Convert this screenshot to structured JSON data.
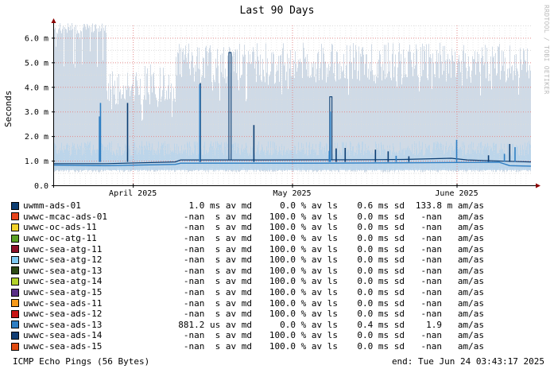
{
  "chart_data": {
    "type": "line",
    "title": "Last 90 Days",
    "ylabel": "Seconds",
    "watermark": "RRDTOOL / TOBI OETIKER",
    "ylim": [
      0,
      0.0065
    ],
    "y_ticks": [
      {
        "value": 0.0,
        "label": "0.0"
      },
      {
        "value": 0.001,
        "label": "1.0 m"
      },
      {
        "value": 0.002,
        "label": "2.0 m"
      },
      {
        "value": 0.003,
        "label": "3.0 m"
      },
      {
        "value": 0.004,
        "label": "4.0 m"
      },
      {
        "value": 0.005,
        "label": "5.0 m"
      },
      {
        "value": 0.006,
        "label": "6.0 m"
      }
    ],
    "x_range_days": [
      0,
      90
    ],
    "x_ticks": [
      {
        "day": 15,
        "label": "April 2025"
      },
      {
        "day": 45,
        "label": "May 2025"
      },
      {
        "day": 76,
        "label": "June 2025"
      }
    ],
    "series": [
      {
        "name": "uwmm-ads-01",
        "color": "#0b3d72",
        "values": [
          [
            0,
            0.00088
          ],
          [
            10,
            0.00088
          ],
          [
            23,
            0.00095
          ],
          [
            24,
            0.00103
          ],
          [
            40,
            0.00103
          ],
          [
            60,
            0.00104
          ],
          [
            66,
            0.00105
          ],
          [
            75,
            0.0011
          ],
          [
            78,
            0.00103
          ],
          [
            85,
            0.00098
          ],
          [
            90,
            0.00095
          ]
        ],
        "spikes": [
          [
            33.3,
            0.0054
          ],
          [
            52.3,
            0.0036
          ],
          [
            27.7,
            0.00415
          ],
          [
            14.0,
            0.00335
          ],
          [
            37.8,
            0.00245
          ],
          [
            53.3,
            0.0015
          ],
          [
            55.0,
            0.00152
          ],
          [
            60.7,
            0.00145
          ],
          [
            63.1,
            0.00138
          ],
          [
            67.0,
            0.00118
          ],
          [
            82.0,
            0.00122
          ],
          [
            86.0,
            0.00168
          ]
        ],
        "box_spikes": [
          [
            33.3,
            0.0054
          ],
          [
            52.3,
            0.0036
          ]
        ]
      },
      {
        "name": "uwwc-sea-ads-13",
        "color": "#2f7fc4",
        "values": [
          [
            0,
            0.00082
          ],
          [
            10,
            0.0008
          ],
          [
            23,
            0.00085
          ],
          [
            24,
            0.0009
          ],
          [
            50,
            0.0009
          ],
          [
            70,
            0.00092
          ],
          [
            84,
            0.00094
          ],
          [
            86,
            0.0008
          ],
          [
            90,
            0.00078
          ]
        ],
        "spikes": [
          [
            8.7,
            0.0028
          ],
          [
            8.9,
            0.00335
          ],
          [
            27.6,
            0.0041
          ],
          [
            52.0,
            0.0014
          ],
          [
            52.2,
            0.003
          ],
          [
            64.6,
            0.0012
          ],
          [
            76.0,
            0.00185
          ],
          [
            85.0,
            0.00128
          ],
          [
            87.0,
            0.00155
          ]
        ]
      }
    ],
    "band": {
      "color": "#cfdae6",
      "light_color": "#b8d4ec",
      "upper_early": 0.0066,
      "upper_quiet": 0.0047,
      "upper_late": 0.0058,
      "lower": 0.00062
    }
  },
  "legend": [
    {
      "color": "#0b3d72",
      "name": "uwmm-ads-01",
      "avg": "1.0 ms av md",
      "loss": "0.0 % av ls",
      "sd": "0.6 ms sd",
      "amas": "133.8 m am/as"
    },
    {
      "color": "#e8441c",
      "name": "uwwc-mcac-ads-01",
      "avg": "-nan  s av md",
      "loss": "100.0 % av ls",
      "sd": "0.0 ms sd",
      "amas": "-nan   am/as"
    },
    {
      "color": "#f2d32b",
      "name": "uwwc-oc-ads-11",
      "avg": "-nan  s av md",
      "loss": "100.0 % av ls",
      "sd": "0.0 ms sd",
      "amas": "-nan   am/as"
    },
    {
      "color": "#5aa024",
      "name": "uwwc-oc-atg-11",
      "avg": "-nan  s av md",
      "loss": "100.0 % av ls",
      "sd": "0.0 ms sd",
      "amas": "-nan   am/as"
    },
    {
      "color": "#8c1028",
      "name": "uwwc-sea-atg-11",
      "avg": "-nan  s av md",
      "loss": "100.0 % av ls",
      "sd": "0.0 ms sd",
      "amas": "-nan   am/as"
    },
    {
      "color": "#7ec8f0",
      "name": "uwwc-sea-atg-12",
      "avg": "-nan  s av md",
      "loss": "100.0 % av ls",
      "sd": "0.0 ms sd",
      "amas": "-nan   am/as"
    },
    {
      "color": "#2d4a14",
      "name": "uwwc-sea-atg-13",
      "avg": "-nan  s av md",
      "loss": "100.0 % av ls",
      "sd": "0.0 ms sd",
      "amas": "-nan   am/as"
    },
    {
      "color": "#b3d22a",
      "name": "uwwc-sea-atg-14",
      "avg": "-nan  s av md",
      "loss": "100.0 % av ls",
      "sd": "0.0 ms sd",
      "amas": "-nan   am/as"
    },
    {
      "color": "#5a2f86",
      "name": "uwwc-sea-atg-15",
      "avg": "-nan  s av md",
      "loss": "100.0 % av ls",
      "sd": "0.0 ms sd",
      "amas": "-nan   am/as"
    },
    {
      "color": "#f79a1a",
      "name": "uwwc-sea-ads-11",
      "avg": "-nan  s av md",
      "loss": "100.0 % av ls",
      "sd": "0.0 ms sd",
      "amas": "-nan   am/as"
    },
    {
      "color": "#c81414",
      "name": "uwwc-sea-ads-12",
      "avg": "-nan  s av md",
      "loss": "100.0 % av ls",
      "sd": "0.0 ms sd",
      "amas": "-nan   am/as"
    },
    {
      "color": "#2f7fc4",
      "name": "uwwc-sea-ads-13",
      "avg": "881.2 us av md",
      "loss": "0.0 % av ls",
      "sd": "0.4 ms sd",
      "amas": "1.9   am/as"
    },
    {
      "color": "#123e74",
      "name": "uwwc-sea-ads-14",
      "avg": "-nan  s av md",
      "loss": "100.0 % av ls",
      "sd": "0.0 ms sd",
      "amas": "-nan   am/as"
    },
    {
      "color": "#e04a10",
      "name": "uwwc-sea-ads-15",
      "avg": "-nan  s av md",
      "loss": "100.0 % av ls",
      "sd": "0.0 ms sd",
      "amas": "-nan   am/as"
    }
  ],
  "footer": {
    "left": "ICMP Echo Pings (56 Bytes)",
    "right": "end: Tue Jun 24 03:43:17 2025"
  }
}
